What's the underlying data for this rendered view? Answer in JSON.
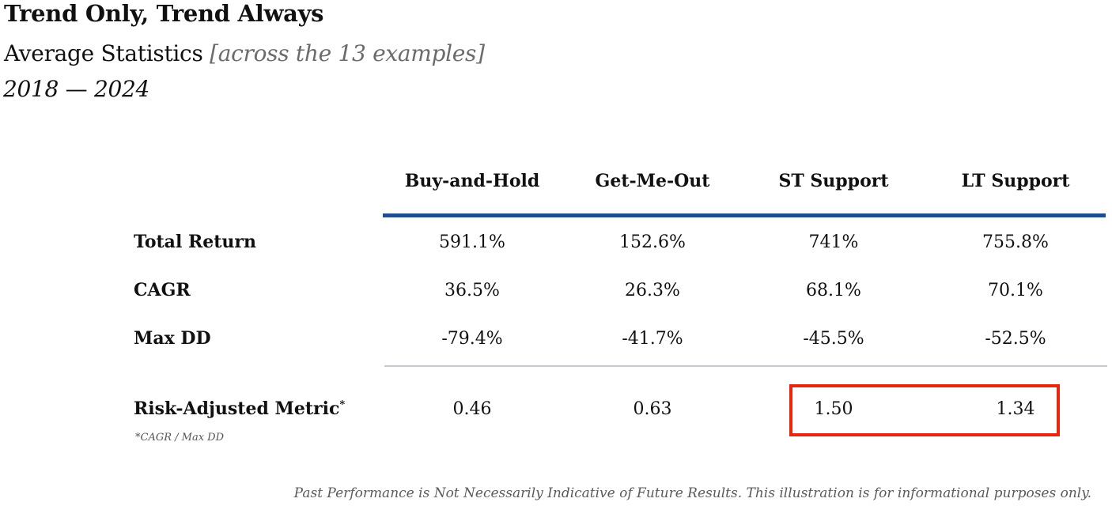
{
  "header": {
    "title": "Trend Only, Trend Always",
    "subtitle": "Average Statistics",
    "subtitle_note": "[across the 13 examples]",
    "period": "2018 — 2024"
  },
  "table": {
    "columns": [
      "Buy-and-Hold",
      "Get-Me-Out",
      "ST Support",
      "LT Support"
    ],
    "rows": [
      {
        "label": "Total Return",
        "values": [
          "591.1%",
          "152.6%",
          "741%",
          "755.8%"
        ]
      },
      {
        "label": "CAGR",
        "values": [
          "36.5%",
          "26.3%",
          "68.1%",
          "70.1%"
        ]
      },
      {
        "label": "Max DD",
        "values": [
          "-79.4%",
          "-41.7%",
          "-45.5%",
          "-52.5%"
        ]
      }
    ],
    "metric_row": {
      "label": "Risk-Adjusted Metric",
      "marker": "*",
      "values": [
        "0.46",
        "0.63",
        "1.50",
        "1.34"
      ]
    },
    "footnote": "*CAGR / Max DD",
    "header_rule_color": "#1f4e8c",
    "highlight_color": "#e8260c"
  },
  "disclaimer": "Past Performance is Not Necessarily Indicative of Future Results. This illustration is for informational purposes only."
}
